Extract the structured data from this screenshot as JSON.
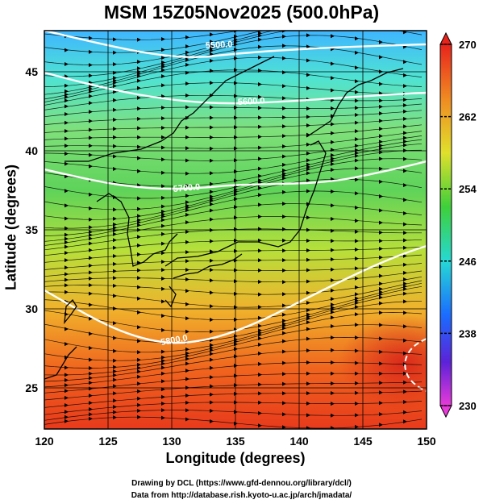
{
  "title": "MSM 15Z05Nov2025 (500.0hPa)",
  "xaxis": {
    "label": "Longitude (degrees)",
    "range": [
      120,
      150
    ],
    "ticks": [
      "120",
      "125",
      "130",
      "135",
      "140",
      "145",
      "150"
    ]
  },
  "yaxis": {
    "label": "Latitude  (degrees)",
    "range": [
      22.4,
      47.6
    ],
    "ticks": [
      "25",
      "30",
      "35",
      "40",
      "45"
    ]
  },
  "colorbar": {
    "range": [
      230,
      270
    ],
    "ticks": [
      "270",
      "262",
      "254",
      "246",
      "238",
      "230"
    ]
  },
  "contour_labels": [
    "5500.0",
    "5600.0",
    "5700.0",
    "5800.0"
  ],
  "credits": {
    "line1": "Drawing by DCL (https://www.gfd-dennou.org/library/dcl/)",
    "line2": "Data from http://database.rish.kyoto-u.ac.jp/arch/jmadata/"
  },
  "colors": {
    "coast": "#000000",
    "contour": "#ffffff",
    "frame": "#000000"
  }
}
